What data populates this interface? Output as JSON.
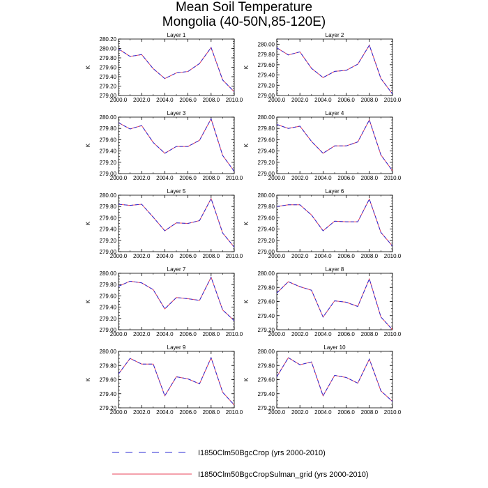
{
  "title": "Mean Soil Temperature",
  "subtitle": "Mongolia (40-50N,85-120E)",
  "legend": [
    {
      "name": "I1850Clm50BgcCrop (yrs 2000-2010)",
      "color": "#2b2bd6",
      "dash": true
    },
    {
      "name": "I1850Clm50BgcCropSulman_grid (yrs 2000-2010)",
      "color": "#e8435a",
      "dash": false
    }
  ],
  "chart_data": [
    {
      "type": "line",
      "title": "Layer 1",
      "ylabel": "K",
      "x": [
        2000,
        2001,
        2002,
        2003,
        2004,
        2005,
        2006,
        2007,
        2008,
        2009,
        2010
      ],
      "xticks": [
        "2000.0",
        "2002.0",
        "2004.0",
        "2006.0",
        "2008.0",
        "2010.0"
      ],
      "yticks": [
        "279.00",
        "279.20",
        "279.40",
        "279.60",
        "279.80",
        "280.00",
        "280.20"
      ],
      "xlim": [
        2000,
        2010
      ],
      "ylim": [
        279.0,
        280.2
      ],
      "series": [
        {
          "values": [
            279.99,
            279.83,
            279.87,
            279.57,
            279.36,
            279.48,
            279.51,
            279.68,
            280.02,
            279.33,
            279.08
          ]
        },
        {
          "values": [
            279.99,
            279.83,
            279.87,
            279.57,
            279.36,
            279.48,
            279.51,
            279.68,
            280.02,
            279.33,
            279.08
          ]
        }
      ]
    },
    {
      "type": "line",
      "title": "Layer 2",
      "ylabel": "K",
      "x": [
        2000,
        2001,
        2002,
        2003,
        2004,
        2005,
        2006,
        2007,
        2008,
        2009,
        2010
      ],
      "xticks": [
        "2000.0",
        "2002.0",
        "2004.0",
        "2006.0",
        "2008.0",
        "2010.0"
      ],
      "yticks": [
        "279.00",
        "279.20",
        "279.40",
        "279.60",
        "279.80",
        "280.00"
      ],
      "xlim": [
        2000,
        2010
      ],
      "ylim": [
        279.0,
        280.1
      ],
      "series": [
        {
          "values": [
            279.93,
            279.79,
            279.85,
            279.53,
            279.35,
            279.47,
            279.49,
            279.61,
            279.98,
            279.33,
            279.03
          ]
        },
        {
          "values": [
            279.93,
            279.79,
            279.85,
            279.53,
            279.35,
            279.47,
            279.49,
            279.61,
            279.98,
            279.33,
            279.03
          ]
        }
      ]
    },
    {
      "type": "line",
      "title": "Layer 3",
      "ylabel": "K",
      "x": [
        2000,
        2001,
        2002,
        2003,
        2004,
        2005,
        2006,
        2007,
        2008,
        2009,
        2010
      ],
      "xticks": [
        "2000.0",
        "2002.0",
        "2004.0",
        "2006.0",
        "2008.0",
        "2010.0"
      ],
      "yticks": [
        "279.00",
        "279.20",
        "279.40",
        "279.60",
        "279.80",
        "280.00"
      ],
      "xlim": [
        2000,
        2010
      ],
      "ylim": [
        279.0,
        280.0
      ],
      "series": [
        {
          "values": [
            279.9,
            279.79,
            279.85,
            279.55,
            279.36,
            279.48,
            279.48,
            279.59,
            279.97,
            279.32,
            279.04
          ]
        },
        {
          "values": [
            279.9,
            279.79,
            279.85,
            279.55,
            279.36,
            279.48,
            279.48,
            279.59,
            279.97,
            279.32,
            279.04
          ]
        }
      ]
    },
    {
      "type": "line",
      "title": "Layer 4",
      "ylabel": "K",
      "x": [
        2000,
        2001,
        2002,
        2003,
        2004,
        2005,
        2006,
        2007,
        2008,
        2009,
        2010
      ],
      "xticks": [
        "2000.0",
        "2002.0",
        "2004.0",
        "2006.0",
        "2008.0",
        "2010.0"
      ],
      "yticks": [
        "279.00",
        "279.20",
        "279.40",
        "279.60",
        "279.80",
        "280.00"
      ],
      "xlim": [
        2000,
        2010
      ],
      "ylim": [
        279.0,
        280.0
      ],
      "series": [
        {
          "values": [
            279.87,
            279.8,
            279.84,
            279.57,
            279.36,
            279.49,
            279.49,
            279.56,
            279.95,
            279.33,
            279.05
          ]
        },
        {
          "values": [
            279.87,
            279.8,
            279.84,
            279.57,
            279.36,
            279.49,
            279.49,
            279.56,
            279.95,
            279.33,
            279.05
          ]
        }
      ]
    },
    {
      "type": "line",
      "title": "Layer 5",
      "ylabel": "K",
      "x": [
        2000,
        2001,
        2002,
        2003,
        2004,
        2005,
        2006,
        2007,
        2008,
        2009,
        2010
      ],
      "xticks": [
        "2000.0",
        "2002.0",
        "2004.0",
        "2006.0",
        "2008.0",
        "2010.0"
      ],
      "yticks": [
        "279.00",
        "279.20",
        "279.40",
        "279.60",
        "279.80",
        "280.00"
      ],
      "xlim": [
        2000,
        2010
      ],
      "ylim": [
        279.0,
        280.0
      ],
      "series": [
        {
          "values": [
            279.84,
            279.82,
            279.84,
            279.61,
            279.37,
            279.51,
            279.5,
            279.55,
            279.94,
            279.33,
            279.08
          ]
        },
        {
          "values": [
            279.84,
            279.82,
            279.84,
            279.61,
            279.37,
            279.51,
            279.5,
            279.55,
            279.94,
            279.33,
            279.08
          ]
        }
      ]
    },
    {
      "type": "line",
      "title": "Layer 6",
      "ylabel": "K",
      "x": [
        2000,
        2001,
        2002,
        2003,
        2004,
        2005,
        2006,
        2007,
        2008,
        2009,
        2010
      ],
      "xticks": [
        "2000.0",
        "2002.0",
        "2004.0",
        "2006.0",
        "2008.0",
        "2010.0"
      ],
      "yticks": [
        "279.00",
        "279.20",
        "279.40",
        "279.60",
        "279.80",
        "280.00"
      ],
      "xlim": [
        2000,
        2010
      ],
      "ylim": [
        279.0,
        280.0
      ],
      "series": [
        {
          "values": [
            279.8,
            279.83,
            279.83,
            279.65,
            279.37,
            279.54,
            279.53,
            279.53,
            279.93,
            279.34,
            279.1
          ]
        },
        {
          "values": [
            279.8,
            279.83,
            279.83,
            279.65,
            279.37,
            279.54,
            279.53,
            279.53,
            279.93,
            279.34,
            279.1
          ]
        }
      ]
    },
    {
      "type": "line",
      "title": "Layer 7",
      "ylabel": "K",
      "x": [
        2000,
        2001,
        2002,
        2003,
        2004,
        2005,
        2006,
        2007,
        2008,
        2009,
        2010
      ],
      "xticks": [
        "2000.0",
        "2002.0",
        "2004.0",
        "2006.0",
        "2008.0",
        "2010.0"
      ],
      "yticks": [
        "279.00",
        "279.20",
        "279.40",
        "279.60",
        "279.80",
        "280.00"
      ],
      "xlim": [
        2000,
        2010
      ],
      "ylim": [
        279.0,
        280.0
      ],
      "series": [
        {
          "values": [
            279.77,
            279.86,
            279.83,
            279.71,
            279.37,
            279.57,
            279.55,
            279.52,
            279.93,
            279.35,
            279.16
          ]
        },
        {
          "values": [
            279.77,
            279.86,
            279.83,
            279.71,
            279.37,
            279.57,
            279.55,
            279.52,
            279.93,
            279.35,
            279.16
          ]
        }
      ]
    },
    {
      "type": "line",
      "title": "Layer 8",
      "ylabel": "K",
      "x": [
        2000,
        2001,
        2002,
        2003,
        2004,
        2005,
        2006,
        2007,
        2008,
        2009,
        2010
      ],
      "xticks": [
        "2000.0",
        "2002.0",
        "2004.0",
        "2006.0",
        "2008.0",
        "2010.0"
      ],
      "yticks": [
        "279.20",
        "279.40",
        "279.60",
        "279.80",
        "280.00"
      ],
      "xlim": [
        2000,
        2010
      ],
      "ylim": [
        279.2,
        280.0
      ],
      "series": [
        {
          "values": [
            279.72,
            279.88,
            279.81,
            279.76,
            279.38,
            279.61,
            279.59,
            279.53,
            279.92,
            279.38,
            279.2
          ]
        },
        {
          "values": [
            279.72,
            279.88,
            279.81,
            279.76,
            279.38,
            279.61,
            279.59,
            279.53,
            279.92,
            279.38,
            279.2
          ]
        }
      ]
    },
    {
      "type": "line",
      "title": "Layer 9",
      "ylabel": "K",
      "x": [
        2000,
        2001,
        2002,
        2003,
        2004,
        2005,
        2006,
        2007,
        2008,
        2009,
        2010
      ],
      "xticks": [
        "2000.0",
        "2002.0",
        "2004.0",
        "2006.0",
        "2008.0",
        "2010.0"
      ],
      "yticks": [
        "279.20",
        "279.40",
        "279.60",
        "279.80",
        "280.00"
      ],
      "xlim": [
        2000,
        2010
      ],
      "ylim": [
        279.2,
        280.0
      ],
      "series": [
        {
          "values": [
            279.68,
            279.9,
            279.82,
            279.82,
            279.37,
            279.64,
            279.61,
            279.54,
            279.91,
            279.42,
            279.24
          ]
        },
        {
          "values": [
            279.68,
            279.9,
            279.82,
            279.82,
            279.37,
            279.64,
            279.61,
            279.54,
            279.91,
            279.42,
            279.24
          ]
        }
      ]
    },
    {
      "type": "line",
      "title": "Layer 10",
      "ylabel": "K",
      "x": [
        2000,
        2001,
        2002,
        2003,
        2004,
        2005,
        2006,
        2007,
        2008,
        2009,
        2010
      ],
      "xticks": [
        "2000.0",
        "2002.0",
        "2004.0",
        "2006.0",
        "2008.0",
        "2010.0"
      ],
      "yticks": [
        "279.20",
        "279.40",
        "279.60",
        "279.80",
        "280.00"
      ],
      "xlim": [
        2000,
        2010
      ],
      "ylim": [
        279.2,
        280.0
      ],
      "series": [
        {
          "values": [
            279.64,
            279.91,
            279.81,
            279.85,
            279.37,
            279.66,
            279.63,
            279.55,
            279.89,
            279.44,
            279.29
          ]
        },
        {
          "values": [
            279.64,
            279.91,
            279.81,
            279.85,
            279.37,
            279.66,
            279.63,
            279.55,
            279.89,
            279.44,
            279.29
          ]
        }
      ]
    }
  ]
}
